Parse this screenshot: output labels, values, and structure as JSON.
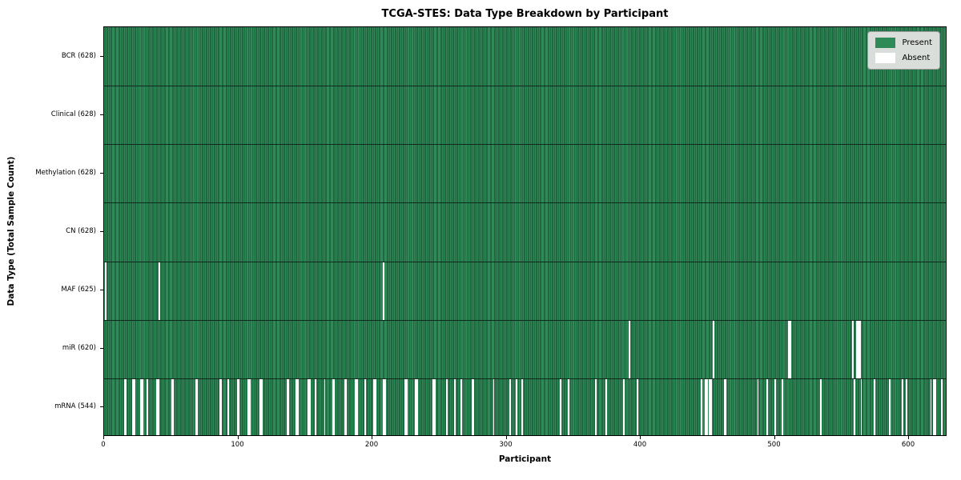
{
  "title": "TCGA-STES: Data Type Breakdown by Participant",
  "xlabel": "Participant",
  "ylabel": "Data Type (Total Sample Count)",
  "legend": {
    "present_label": "Present",
    "absent_label": "Absent"
  },
  "colors": {
    "present_fill": "#2e8b57",
    "present_bar_edge": "#16432c",
    "absent_fill": "#ffffff",
    "row_separator": "#0e2a1b",
    "legend_bg": "#dadeda",
    "legend_border": "#9c9c9c"
  },
  "chart_data": {
    "type": "heatmap",
    "title": "TCGA-STES: Data Type Breakdown by Participant",
    "xlabel": "Participant",
    "ylabel": "Data Type (Total Sample Count)",
    "legend": [
      "Present",
      "Absent"
    ],
    "legend_position": "upper right",
    "total_participants": 628,
    "xlim": [
      0,
      628
    ],
    "x_ticks": [
      0,
      100,
      200,
      300,
      400,
      500,
      600
    ],
    "rows": [
      {
        "label": "BCR (628)",
        "data_type": "BCR",
        "present_count": 628,
        "absent_count": 0,
        "absent_participants": []
      },
      {
        "label": "Clinical (628)",
        "data_type": "Clinical",
        "present_count": 628,
        "absent_count": 0,
        "absent_participants": []
      },
      {
        "label": "Methylation (628)",
        "data_type": "Methylation",
        "present_count": 628,
        "absent_count": 0,
        "absent_participants": []
      },
      {
        "label": "CN (628)",
        "data_type": "CN",
        "present_count": 628,
        "absent_count": 0,
        "absent_participants": []
      },
      {
        "label": "MAF (625)",
        "data_type": "MAF",
        "present_count": 625,
        "absent_count": 3,
        "absent_participants": [
          1,
          41,
          208
        ]
      },
      {
        "label": "miR (620)",
        "data_type": "miR",
        "present_count": 620,
        "absent_count": 8,
        "absent_participants": [
          391,
          454,
          510,
          511,
          558,
          561,
          562,
          563
        ]
      },
      {
        "label": "mRNA (544)",
        "data_type": "mRNA",
        "present_count": 544,
        "absent_count": 84,
        "absent_participants": [
          15,
          16,
          21,
          22,
          27,
          28,
          32,
          39,
          40,
          50,
          51,
          68,
          69,
          86,
          87,
          92,
          99,
          100,
          107,
          108,
          116,
          117,
          136,
          137,
          143,
          144,
          152,
          153,
          157,
          164,
          170,
          171,
          179,
          180,
          187,
          188,
          194,
          201,
          202,
          208,
          209,
          224,
          225,
          232,
          233,
          245,
          246,
          255,
          261,
          266,
          274,
          275,
          290,
          302,
          307,
          311,
          340,
          346,
          366,
          374,
          387,
          397,
          445,
          448,
          449,
          451,
          452,
          462,
          463,
          487,
          494,
          500,
          505,
          534,
          559,
          564,
          574,
          585,
          595,
          598,
          616,
          618,
          619,
          624
        ]
      }
    ]
  }
}
